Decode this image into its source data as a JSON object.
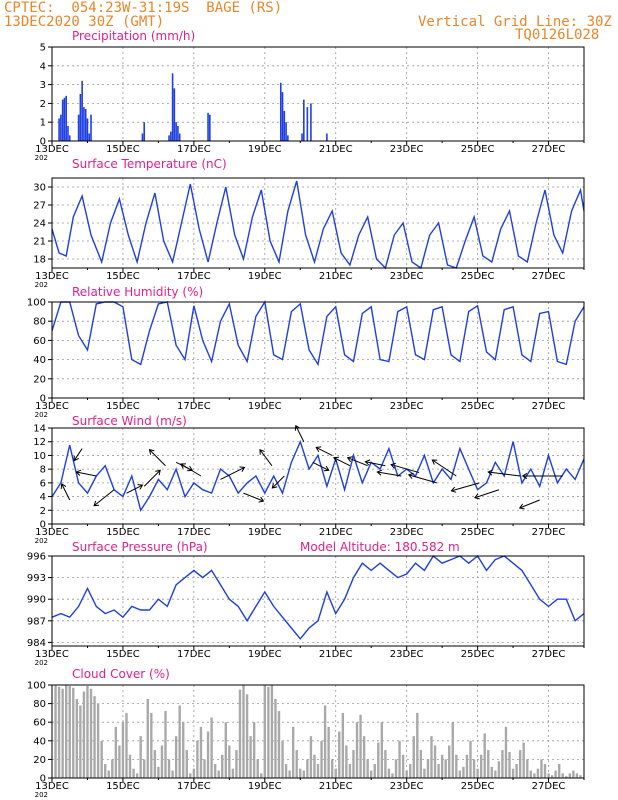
{
  "header": {
    "station": "CPTEC:  054:23W-31:19S  BAGE (RS)",
    "date": "13DEC2020 30Z (GMT)",
    "grid_line": "Vertical Grid Line: 30Z",
    "code": "TQ0126L028"
  },
  "colors": {
    "title": "#e0208a",
    "line": "#1f3fe0",
    "cloud": "#a9a9a9",
    "wind_arrow": "#000000",
    "header": "#e8862a"
  },
  "x_ticks": [
    "13DEC",
    "15DEC",
    "17DEC",
    "19DEC",
    "21DEC",
    "23DEC",
    "25DEC",
    "27DEC"
  ],
  "x_tick_fraction": "202",
  "chart_data": [
    {
      "type": "bar",
      "title": "Precipitation (mm/h)",
      "ylim": [
        0,
        5
      ],
      "yticks": [
        0,
        1,
        2,
        3,
        4,
        5
      ],
      "x_days": [
        0.2,
        0.25,
        0.3,
        0.35,
        0.4,
        0.45,
        0.5,
        0.75,
        0.8,
        0.85,
        0.9,
        0.95,
        1.0,
        1.05,
        1.1,
        2.55,
        2.6,
        3.3,
        3.35,
        3.4,
        3.45,
        3.5,
        3.55,
        3.6,
        4.4,
        4.45,
        6.45,
        6.5,
        6.55,
        6.6,
        6.65,
        7.05,
        7.1,
        7.2,
        7.3,
        7.75
      ],
      "values": [
        1.2,
        1.4,
        2.2,
        2.3,
        2.4,
        0.8,
        0.3,
        1.4,
        2.5,
        3.2,
        1.8,
        1.7,
        1.2,
        0.4,
        1.4,
        0.4,
        1.0,
        0.3,
        0.5,
        3.6,
        2.8,
        1.0,
        0.8,
        0.4,
        1.5,
        1.4,
        3.1,
        2.6,
        1.6,
        1.0,
        0.3,
        0.4,
        2.2,
        1.8,
        2.0,
        0.4
      ]
    },
    {
      "type": "line",
      "title": "Surface Temperature (nC)",
      "ylim": [
        16.5,
        31.5
      ],
      "yticks": [
        18,
        21,
        24,
        27,
        30
      ],
      "x_days": [
        0,
        0.2,
        0.4,
        0.6,
        0.85,
        1.1,
        1.4,
        1.65,
        1.9,
        2.15,
        2.4,
        2.65,
        2.9,
        3.15,
        3.4,
        3.65,
        3.9,
        4.15,
        4.4,
        4.65,
        4.9,
        5.15,
        5.4,
        5.65,
        5.9,
        6.15,
        6.4,
        6.65,
        6.9,
        7.15,
        7.4,
        7.65,
        7.9,
        8.15,
        8.4,
        8.65,
        8.9,
        9.15,
        9.4,
        9.65,
        9.9,
        10.15,
        10.4,
        10.65,
        10.9,
        11.15,
        11.4,
        11.65,
        11.9,
        12.15,
        12.4,
        12.65,
        12.9,
        13.15,
        13.4,
        13.65,
        13.9,
        14.15,
        14.4,
        14.65,
        14.9,
        15.0
      ],
      "values": [
        23,
        19,
        18.5,
        25,
        28.5,
        22,
        17.5,
        24,
        28,
        22,
        17.5,
        24,
        29,
        21,
        17.5,
        24,
        30.5,
        23,
        17.5,
        24,
        30,
        22,
        18,
        25,
        29.5,
        21,
        17.5,
        26,
        31,
        22,
        17.5,
        23,
        26,
        19,
        17,
        22,
        25,
        18,
        16.5,
        22,
        24,
        17.5,
        16.5,
        22,
        24,
        17,
        16.5,
        21,
        25,
        18.5,
        17.5,
        23,
        26,
        18.5,
        17.5,
        24,
        29.5,
        22,
        19,
        26,
        29.5,
        26
      ]
    },
    {
      "type": "line",
      "title": "Relative Humidity (%)",
      "ylim": [
        0,
        100
      ],
      "yticks": [
        0,
        20,
        40,
        60,
        80,
        100
      ],
      "x_days": [
        0,
        0.25,
        0.5,
        0.75,
        1.0,
        1.25,
        1.5,
        1.75,
        2.0,
        2.25,
        2.5,
        2.75,
        3.0,
        3.25,
        3.5,
        3.75,
        4.0,
        4.25,
        4.5,
        4.75,
        5.0,
        5.25,
        5.5,
        5.75,
        6.0,
        6.25,
        6.5,
        6.75,
        7.0,
        7.25,
        7.5,
        7.75,
        8.0,
        8.25,
        8.5,
        8.75,
        9.0,
        9.25,
        9.5,
        9.75,
        10.0,
        10.25,
        10.5,
        10.75,
        11.0,
        11.25,
        11.5,
        11.75,
        12.0,
        12.25,
        12.5,
        12.75,
        13.0,
        13.25,
        13.5,
        13.75,
        14.0,
        14.25,
        14.5,
        14.75,
        15.0
      ],
      "values": [
        70,
        100,
        100,
        65,
        50,
        98,
        100,
        100,
        95,
        40,
        35,
        70,
        98,
        100,
        55,
        40,
        96,
        60,
        38,
        80,
        98,
        55,
        38,
        85,
        100,
        45,
        40,
        90,
        98,
        50,
        35,
        85,
        95,
        45,
        38,
        88,
        95,
        40,
        38,
        90,
        95,
        45,
        40,
        92,
        95,
        45,
        38,
        90,
        96,
        48,
        40,
        92,
        95,
        45,
        38,
        88,
        90,
        38,
        35,
        80,
        95
      ]
    },
    {
      "type": "line",
      "title": "Surface Wind (m/s)",
      "ylim": [
        0,
        14
      ],
      "yticks": [
        0,
        2,
        4,
        6,
        8,
        10,
        12,
        14
      ],
      "x_days": [
        0,
        0.25,
        0.5,
        0.75,
        1.0,
        1.25,
        1.5,
        1.75,
        2.0,
        2.25,
        2.5,
        2.75,
        3.0,
        3.25,
        3.5,
        3.75,
        4.0,
        4.25,
        4.5,
        4.75,
        5.0,
        5.25,
        5.5,
        5.75,
        6.0,
        6.25,
        6.5,
        6.75,
        7.0,
        7.25,
        7.5,
        7.75,
        8.0,
        8.25,
        8.5,
        8.75,
        9.0,
        9.25,
        9.5,
        9.75,
        10.0,
        10.25,
        10.5,
        10.75,
        11.0,
        11.25,
        11.5,
        11.75,
        12.0,
        12.25,
        12.5,
        12.75,
        13.0,
        13.25,
        13.5,
        13.75,
        14.0,
        14.25,
        14.5,
        14.75,
        15.0
      ],
      "values": [
        4,
        6,
        11.5,
        6,
        4.5,
        7,
        8.5,
        5,
        4,
        7,
        2,
        4,
        6.5,
        5,
        8,
        4,
        6,
        5,
        4.5,
        8,
        7,
        4.5,
        6,
        7,
        4.5,
        7,
        4.5,
        9,
        12,
        8,
        10,
        5.5,
        9.5,
        5,
        10,
        6,
        9,
        8,
        11,
        7,
        8,
        7,
        10,
        6,
        8,
        6.5,
        11,
        8,
        5,
        6,
        9,
        7,
        12,
        6,
        8,
        5.5,
        10,
        6,
        8,
        6.5,
        9.5
      ]
    },
    {
      "type": "line",
      "title": "Surface Pressure (hPa)",
      "annotation": "Model Altitude: 180.582  m",
      "ylim": [
        983.5,
        996
      ],
      "yticks": [
        984,
        987,
        990,
        993,
        996
      ],
      "x_days": [
        0,
        0.25,
        0.5,
        0.75,
        1.0,
        1.25,
        1.5,
        1.75,
        2.0,
        2.25,
        2.5,
        2.75,
        3.0,
        3.25,
        3.5,
        3.75,
        4.0,
        4.25,
        4.5,
        4.75,
        5.0,
        5.25,
        5.5,
        5.75,
        6.0,
        6.25,
        6.5,
        6.75,
        7.0,
        7.25,
        7.5,
        7.75,
        8.0,
        8.25,
        8.5,
        8.75,
        9.0,
        9.25,
        9.5,
        9.75,
        10.0,
        10.25,
        10.5,
        10.75,
        11.0,
        11.25,
        11.5,
        11.75,
        12.0,
        12.25,
        12.5,
        12.75,
        13.0,
        13.25,
        13.5,
        13.75,
        14.0,
        14.25,
        14.5,
        14.75,
        15.0
      ],
      "values": [
        987.5,
        988,
        987.5,
        989,
        991.5,
        989,
        988,
        988.5,
        987.5,
        989,
        988.5,
        988.5,
        990,
        989,
        992,
        993,
        994,
        993,
        994,
        992,
        990,
        989,
        987,
        989,
        991,
        989,
        987.5,
        986,
        984.5,
        986,
        987,
        991,
        988,
        990,
        993,
        995,
        994,
        995,
        994,
        993,
        993.5,
        995,
        994,
        996,
        995,
        995.5,
        996,
        995,
        996,
        994,
        995.5,
        996,
        995,
        994,
        992,
        990,
        989,
        990,
        990,
        987,
        988
      ]
    },
    {
      "type": "bar",
      "title": "Cloud Cover (%)",
      "ylim": [
        0,
        100
      ],
      "yticks": [
        0,
        20,
        40,
        60,
        80,
        100
      ],
      "color": "#a9a9a9",
      "x_days": [
        0.1,
        0.2,
        0.3,
        0.4,
        0.5,
        0.6,
        0.7,
        0.8,
        0.9,
        1.0,
        1.1,
        1.2,
        1.3,
        1.4,
        1.5,
        1.6,
        1.7,
        1.8,
        1.9,
        2.0,
        2.1,
        2.2,
        2.3,
        2.4,
        2.5,
        2.6,
        2.7,
        2.8,
        2.9,
        3.0,
        3.1,
        3.2,
        3.3,
        3.4,
        3.5,
        3.6,
        3.7,
        3.8,
        3.9,
        4.0,
        4.1,
        4.2,
        4.3,
        4.4,
        4.5,
        4.6,
        4.7,
        4.8,
        4.9,
        5.0,
        5.1,
        5.2,
        5.3,
        5.4,
        5.5,
        5.6,
        5.7,
        5.8,
        5.9,
        6.0,
        6.1,
        6.2,
        6.3,
        6.4,
        6.5,
        6.6,
        6.7,
        6.8,
        6.9,
        7.0,
        7.1,
        7.2,
        7.3,
        7.4,
        7.5,
        7.6,
        7.7,
        7.8,
        7.9,
        8.0,
        8.1,
        8.2,
        8.3,
        8.4,
        8.5,
        8.6,
        8.7,
        8.8,
        8.9,
        9.0,
        9.1,
        9.2,
        9.3,
        9.4,
        9.5,
        9.6,
        9.7,
        9.8,
        9.9,
        10.0,
        10.1,
        10.2,
        10.3,
        10.4,
        10.5,
        10.6,
        10.7,
        10.8,
        10.9,
        11.0,
        11.1,
        11.2,
        11.3,
        11.4,
        11.5,
        11.6,
        11.7,
        11.8,
        11.9,
        12.0,
        12.1,
        12.2,
        12.3,
        12.4,
        12.5,
        12.6,
        12.7,
        12.8,
        12.9,
        13.0,
        13.1,
        13.2,
        13.3,
        13.4,
        13.5,
        13.6,
        13.7,
        13.8,
        13.9,
        14.0,
        14.1,
        14.2,
        14.3,
        14.4,
        14.5,
        14.6,
        14.7,
        14.8,
        14.9
      ],
      "values": [
        100,
        98,
        96,
        100,
        99,
        97,
        85,
        78,
        93,
        99,
        96,
        88,
        80,
        40,
        15,
        8,
        20,
        55,
        35,
        60,
        70,
        25,
        10,
        5,
        45,
        20,
        85,
        70,
        30,
        12,
        35,
        72,
        20,
        8,
        45,
        78,
        60,
        30,
        5,
        10,
        40,
        55,
        20,
        50,
        65,
        15,
        8,
        25,
        60,
        35,
        10,
        30,
        95,
        100,
        90,
        45,
        60,
        20,
        5,
        100,
        98,
        100,
        85,
        72,
        40,
        15,
        8,
        55,
        30,
        10,
        8,
        20,
        45,
        25,
        15,
        40,
        78,
        55,
        20,
        10,
        50,
        70,
        35,
        15,
        30,
        60,
        68,
        45,
        20,
        8,
        15,
        38,
        60,
        30,
        10,
        5,
        20,
        40,
        25,
        8,
        15,
        45,
        70,
        30,
        10,
        20,
        45,
        35,
        15,
        25,
        20,
        35,
        60,
        25,
        8,
        12,
        25,
        40,
        20,
        10,
        25,
        48,
        30,
        12,
        8,
        18,
        30,
        55,
        28,
        10,
        15,
        30,
        38,
        20,
        8,
        5,
        10,
        20,
        15,
        5,
        3,
        8,
        15,
        5,
        2,
        5,
        8,
        5,
        3
      ]
    }
  ],
  "wind_vectors": {
    "x_days": [
      0.5,
      0.85,
      1.25,
      1.75,
      2.1,
      2.6,
      3.2,
      3.5,
      4.2,
      4.75,
      5.4,
      6.2,
      6.55,
      7.1,
      7.35,
      7.9,
      8.4,
      8.9,
      9.4,
      9.85,
      10.35,
      10.85,
      11.4,
      12.05,
      12.6,
      13.2,
      13.75,
      14.4
    ],
    "y": [
      3.5,
      11,
      7,
      5,
      4.5,
      5.5,
      8.5,
      9,
      7,
      6.5,
      4.5,
      8.5,
      7,
      12,
      9,
      10,
      8.5,
      8.5,
      8.5,
      7,
      7.5,
      6,
      7,
      6,
      5,
      7,
      3.5,
      7
    ],
    "u": [
      -1,
      -1,
      -2.5,
      -2.5,
      2,
      2,
      -2,
      2,
      -2.5,
      3,
      2.5,
      -1.5,
      -1.5,
      -1,
      2,
      -2,
      -2,
      -2.5,
      -2.5,
      -3,
      -3.5,
      -3.5,
      -3,
      -3.5,
      -3,
      -4,
      -2.5,
      -5
    ],
    "v": [
      2,
      -1.5,
      0.5,
      -2,
      1,
      2,
      2,
      -1,
      1.5,
      1.5,
      -1,
      2,
      -1.5,
      2,
      -1,
      1,
      1,
      1,
      0.5,
      0.5,
      1,
      1,
      2,
      -1,
      -1,
      0.5,
      -1,
      0
    ]
  }
}
